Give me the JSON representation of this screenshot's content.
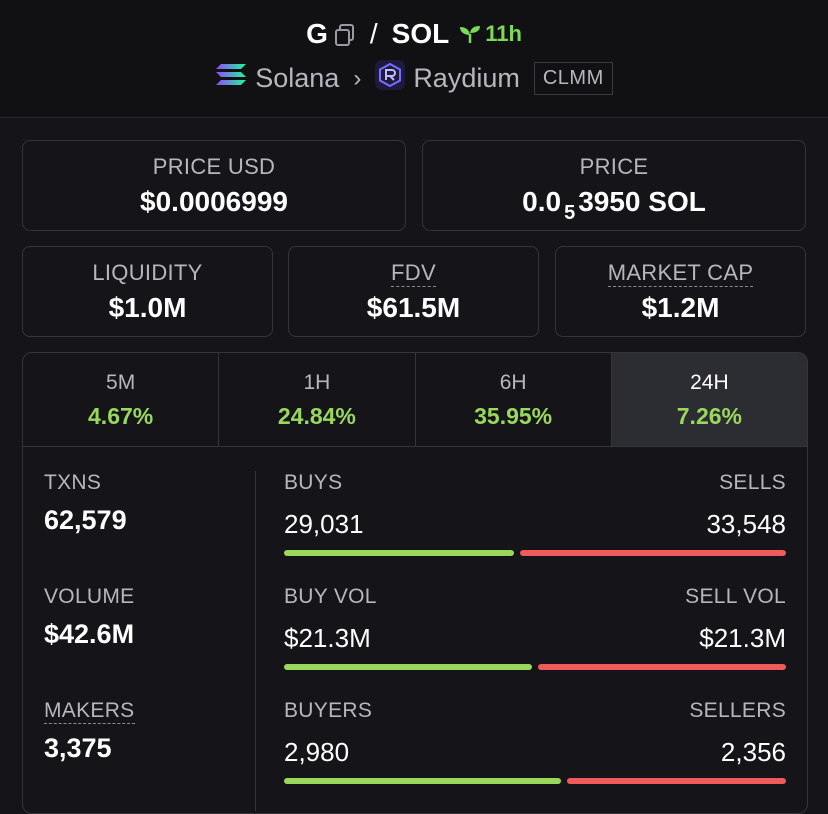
{
  "header": {
    "token": "G",
    "slash": "/",
    "quote": "SOL",
    "age": "11h",
    "chain": "Solana",
    "chevron": "›",
    "dex": "Raydium",
    "badge": "CLMM"
  },
  "price_usd": {
    "label": "PRICE USD",
    "value": "$0.0006999"
  },
  "price": {
    "label": "PRICE",
    "prefix": "0.0",
    "sub": "5",
    "rest": "3950 SOL"
  },
  "liquidity": {
    "label": "LIQUIDITY",
    "value": "$1.0M"
  },
  "fdv": {
    "label": "FDV",
    "value": "$61.5M"
  },
  "mcap": {
    "label": "MARKET CAP",
    "value": "$1.2M"
  },
  "tabs": [
    {
      "label": "5M",
      "value": "4.67%"
    },
    {
      "label": "1H",
      "value": "24.84%"
    },
    {
      "label": "6H",
      "value": "35.95%"
    },
    {
      "label": "24H",
      "value": "7.26%"
    }
  ],
  "metrics": {
    "txns": {
      "label": "TXNS",
      "value": "62,579"
    },
    "volume": {
      "label": "VOLUME",
      "value": "$42.6M"
    },
    "makers": {
      "label": "MAKERS",
      "value": "3,375"
    }
  },
  "rows": {
    "trades": {
      "left_label": "BUYS",
      "right_label": "SELLS",
      "left_value": "29,031",
      "right_value": "33,548",
      "buy_fraction": 0.464
    },
    "vol": {
      "left_label": "BUY VOL",
      "right_label": "SELL VOL",
      "left_value": "$21.3M",
      "right_value": "$21.3M",
      "buy_fraction": 0.5
    },
    "traders": {
      "left_label": "BUYERS",
      "right_label": "SELLERS",
      "left_value": "2,980",
      "right_value": "2,356",
      "buy_fraction": 0.558
    }
  },
  "colors": {
    "up": "#9ad85c",
    "buy_bar": "#9ad85c",
    "sell_bar": "#ef5a5a",
    "age": "#7ed957"
  }
}
